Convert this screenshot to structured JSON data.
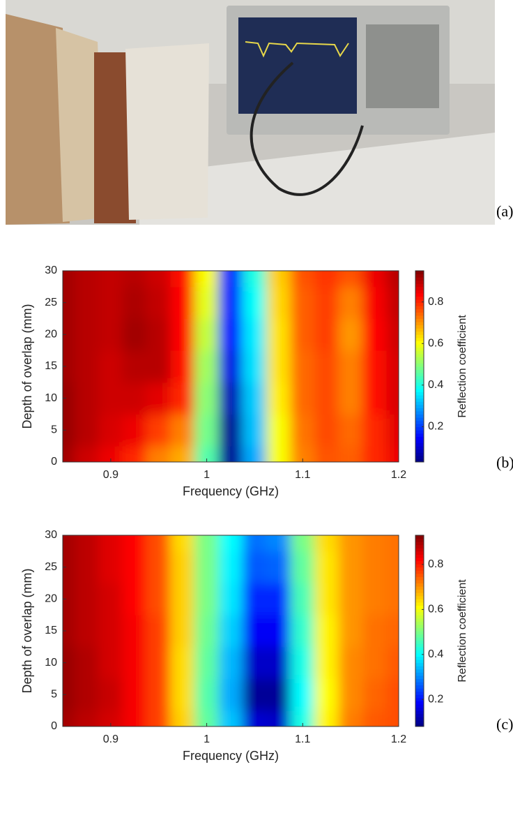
{
  "panel_labels": [
    "(a)",
    "(b)",
    "(c)"
  ],
  "chart_data": [
    {
      "type": "heatmap",
      "xlabel": "Frequency (GHz)",
      "ylabel": "Depth of overlap (mm)",
      "colorbar_label": "Reflection coefficient",
      "colormap": "jet",
      "x": [
        0.85,
        0.875,
        0.9,
        0.925,
        0.95,
        0.975,
        1.0,
        1.025,
        1.05,
        1.075,
        1.1,
        1.125,
        1.15,
        1.175,
        1.2
      ],
      "y": [
        0,
        5,
        10,
        15,
        20,
        25,
        30
      ],
      "values": [
        [
          0.92,
          0.88,
          0.85,
          0.8,
          0.72,
          0.68,
          0.45,
          0.05,
          0.3,
          0.6,
          0.72,
          0.76,
          0.75,
          0.8,
          0.85
        ],
        [
          0.93,
          0.9,
          0.87,
          0.85,
          0.78,
          0.72,
          0.48,
          0.05,
          0.32,
          0.6,
          0.73,
          0.77,
          0.74,
          0.8,
          0.86
        ],
        [
          0.93,
          0.9,
          0.88,
          0.88,
          0.86,
          0.8,
          0.5,
          0.08,
          0.33,
          0.62,
          0.74,
          0.77,
          0.72,
          0.82,
          0.87
        ],
        [
          0.92,
          0.9,
          0.88,
          0.9,
          0.9,
          0.82,
          0.52,
          0.12,
          0.35,
          0.63,
          0.74,
          0.77,
          0.72,
          0.82,
          0.87
        ],
        [
          0.92,
          0.9,
          0.89,
          0.92,
          0.9,
          0.83,
          0.55,
          0.15,
          0.36,
          0.63,
          0.75,
          0.78,
          0.7,
          0.83,
          0.88
        ],
        [
          0.92,
          0.9,
          0.89,
          0.91,
          0.89,
          0.83,
          0.58,
          0.17,
          0.38,
          0.64,
          0.75,
          0.78,
          0.72,
          0.84,
          0.89
        ],
        [
          0.92,
          0.9,
          0.89,
          0.9,
          0.88,
          0.82,
          0.6,
          0.18,
          0.4,
          0.65,
          0.76,
          0.79,
          0.76,
          0.85,
          0.9
        ]
      ],
      "xlim": [
        0.85,
        1.2
      ],
      "ylim": [
        0,
        30
      ],
      "xticks": [
        0.9,
        1,
        1.1,
        1.2
      ],
      "yticks": [
        0,
        5,
        10,
        15,
        20,
        25,
        30
      ],
      "clim": [
        0.03,
        0.95
      ],
      "cticks": [
        0.2,
        0.4,
        0.6,
        0.8
      ]
    },
    {
      "type": "heatmap",
      "xlabel": "Frequency (GHz)",
      "ylabel": "Depth of overlap (mm)",
      "colorbar_label": "Reflection coefficient",
      "colormap": "jet",
      "x": [
        0.85,
        0.875,
        0.9,
        0.925,
        0.95,
        0.975,
        1.0,
        1.025,
        1.05,
        1.075,
        1.1,
        1.125,
        1.15,
        1.175,
        1.2
      ],
      "y": [
        0,
        5,
        10,
        15,
        20,
        25,
        30
      ],
      "values": [
        [
          0.9,
          0.88,
          0.86,
          0.83,
          0.77,
          0.65,
          0.48,
          0.35,
          0.15,
          0.14,
          0.42,
          0.62,
          0.72,
          0.75,
          0.76
        ],
        [
          0.91,
          0.89,
          0.87,
          0.83,
          0.77,
          0.64,
          0.47,
          0.33,
          0.1,
          0.1,
          0.4,
          0.61,
          0.71,
          0.74,
          0.76
        ],
        [
          0.91,
          0.89,
          0.86,
          0.83,
          0.77,
          0.64,
          0.48,
          0.34,
          0.14,
          0.14,
          0.42,
          0.62,
          0.71,
          0.73,
          0.75
        ],
        [
          0.9,
          0.88,
          0.86,
          0.83,
          0.77,
          0.65,
          0.49,
          0.36,
          0.18,
          0.18,
          0.44,
          0.62,
          0.7,
          0.73,
          0.74
        ],
        [
          0.9,
          0.88,
          0.86,
          0.82,
          0.76,
          0.65,
          0.5,
          0.38,
          0.22,
          0.22,
          0.46,
          0.63,
          0.7,
          0.72,
          0.73
        ],
        [
          0.9,
          0.88,
          0.85,
          0.82,
          0.76,
          0.65,
          0.5,
          0.39,
          0.26,
          0.27,
          0.48,
          0.63,
          0.7,
          0.72,
          0.73
        ],
        [
          0.9,
          0.88,
          0.85,
          0.82,
          0.76,
          0.64,
          0.5,
          0.4,
          0.28,
          0.3,
          0.5,
          0.64,
          0.7,
          0.72,
          0.73
        ]
      ],
      "xlim": [
        0.85,
        1.2
      ],
      "ylim": [
        0,
        30
      ],
      "xticks": [
        0.9,
        1,
        1.1,
        1.2
      ],
      "yticks": [
        0,
        5,
        10,
        15,
        20,
        25,
        30
      ],
      "clim": [
        0.08,
        0.93
      ],
      "cticks": [
        0.2,
        0.4,
        0.6,
        0.8
      ]
    }
  ]
}
